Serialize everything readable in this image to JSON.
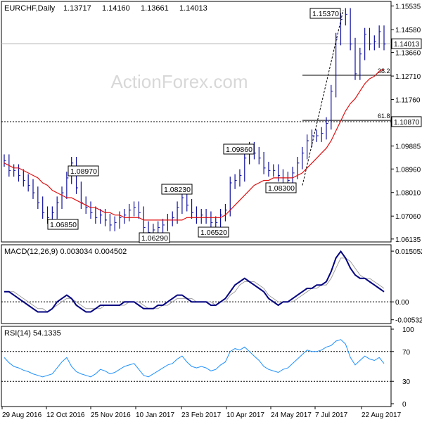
{
  "chart_data": [
    {
      "type": "line",
      "subtype": "ohlc-bars",
      "title": "EURCHF,Daily",
      "ohlc_readout": {
        "open": "1.13717",
        "high": "1.14160",
        "low": "1.13661",
        "close": "1.14013"
      },
      "watermark": "ActionForex.com",
      "ylim": [
        1.0613,
        1.1555
      ],
      "y_ticks": [
        "1.15535",
        "1.14580",
        "1.13660",
        "1.12710",
        "1.11760",
        "1.10870",
        "1.09885",
        "1.08960",
        "1.08010",
        "1.07060",
        "1.06135"
      ],
      "current_price": {
        "value": 1.14013,
        "label": "1.14013"
      },
      "support_line": {
        "value": 1.1087,
        "label": "1.10870"
      },
      "fib_levels": [
        {
          "label": "38.2",
          "value": 1.1274
        },
        {
          "label": "61.8",
          "value": 1.1092
        }
      ],
      "annotations": [
        {
          "label": "1.08970",
          "value": 1.0897
        },
        {
          "label": "1.06850",
          "value": 1.0685
        },
        {
          "label": "1.06290",
          "value": 1.0629
        },
        {
          "label": "1.08230",
          "value": 1.0823
        },
        {
          "label": "1.06520",
          "value": 1.0652
        },
        {
          "label": "1.09860",
          "value": 1.0986
        },
        {
          "label": "1.08300",
          "value": 1.083
        },
        {
          "label": "1.15370",
          "value": 1.1537
        }
      ],
      "x_ticks": [
        "29 Aug 2016",
        "12 Oct 2016",
        "25 Nov 2016",
        "10 Jan 2017",
        "23 Feb 2017",
        "10 Apr 2017",
        "24 May 2017",
        "7 Jul 2017",
        "22 Aug 2017"
      ],
      "series": [
        {
          "role": "price",
          "color": "#1010a0",
          "values": [
            1.093,
            1.089,
            1.089,
            1.087,
            1.085,
            1.083,
            1.08,
            1.076,
            1.072,
            1.07,
            1.072,
            1.076,
            1.08,
            1.086,
            1.092,
            1.082,
            1.076,
            1.074,
            1.072,
            1.07,
            1.071,
            1.069,
            1.067,
            1.068,
            1.07,
            1.071,
            1.073,
            1.074,
            1.072,
            1.066,
            1.064,
            1.065,
            1.066,
            1.067,
            1.069,
            1.07,
            1.074,
            1.078,
            1.075,
            1.072,
            1.07,
            1.071,
            1.07,
            1.068,
            1.068,
            1.071,
            1.073,
            1.084,
            1.085,
            1.087,
            1.094,
            1.098,
            1.096,
            1.094,
            1.09,
            1.089,
            1.089,
            1.087,
            1.086,
            1.085,
            1.088,
            1.092,
            1.096,
            1.101,
            1.103,
            1.103,
            1.104,
            1.108,
            1.121,
            1.142,
            1.15,
            1.152,
            1.14,
            1.128,
            1.136,
            1.144,
            1.14,
            1.141,
            1.145,
            1.14
          ]
        },
        {
          "role": "moving-average",
          "color": "#e01010",
          "values": [
            1.092,
            1.091,
            1.09,
            1.09,
            1.089,
            1.088,
            1.087,
            1.086,
            1.084,
            1.083,
            1.081,
            1.08,
            1.079,
            1.078,
            1.078,
            1.077,
            1.076,
            1.075,
            1.074,
            1.074,
            1.073,
            1.072,
            1.072,
            1.071,
            1.071,
            1.07,
            1.07,
            1.07,
            1.07,
            1.069,
            1.069,
            1.069,
            1.069,
            1.069,
            1.069,
            1.069,
            1.069,
            1.069,
            1.07,
            1.07,
            1.07,
            1.07,
            1.07,
            1.07,
            1.07,
            1.07,
            1.071,
            1.073,
            1.075,
            1.077,
            1.079,
            1.081,
            1.083,
            1.084,
            1.085,
            1.085,
            1.086,
            1.086,
            1.086,
            1.086,
            1.086,
            1.087,
            1.088,
            1.09,
            1.092,
            1.094,
            1.096,
            1.098,
            1.101,
            1.105,
            1.109,
            1.113,
            1.116,
            1.118,
            1.121,
            1.124,
            1.126,
            1.127,
            1.129,
            1.13
          ]
        }
      ]
    },
    {
      "type": "line",
      "title": "MACD(12,26,9) 0.003034 0.004502",
      "ylim": [
        -0.0056,
        0.0157
      ],
      "y_ticks": [
        "0.015052",
        "0.00",
        "-0.005321"
      ],
      "series": [
        {
          "role": "macd",
          "color": "#000080",
          "values": [
            0.003,
            0.003,
            0.002,
            0.001,
            0.0,
            -0.001,
            -0.002,
            -0.003,
            -0.003,
            -0.003,
            -0.002,
            0.0,
            0.001,
            0.002,
            0.001,
            -0.001,
            -0.002,
            -0.003,
            -0.003,
            -0.002,
            -0.001,
            -0.001,
            -0.001,
            -0.001,
            -0.001,
            0.0,
            0.0,
            0.0,
            -0.001,
            -0.002,
            -0.002,
            -0.002,
            -0.001,
            -0.001,
            0.0,
            0.001,
            0.002,
            0.002,
            0.001,
            0.0,
            0.0,
            0.0,
            0.0,
            -0.001,
            -0.001,
            0.0,
            0.001,
            0.003,
            0.005,
            0.006,
            0.007,
            0.006,
            0.005,
            0.004,
            0.003,
            0.001,
            0.0,
            -0.001,
            0.0,
            0.0,
            0.001,
            0.002,
            0.003,
            0.004,
            0.004,
            0.005,
            0.005,
            0.006,
            0.009,
            0.013,
            0.015,
            0.013,
            0.01,
            0.008,
            0.007,
            0.007,
            0.006,
            0.005,
            0.004,
            0.003
          ]
        },
        {
          "role": "signal",
          "color": "#a0a0a0",
          "values": [
            0.003,
            0.003,
            0.003,
            0.002,
            0.001,
            0.0,
            -0.001,
            -0.002,
            -0.002,
            -0.003,
            -0.002,
            -0.001,
            0.0,
            0.001,
            0.001,
            0.0,
            -0.001,
            -0.002,
            -0.002,
            -0.002,
            -0.002,
            -0.001,
            -0.001,
            -0.001,
            -0.001,
            -0.001,
            0.0,
            0.0,
            0.0,
            -0.001,
            -0.002,
            -0.002,
            -0.002,
            -0.001,
            -0.001,
            0.0,
            0.001,
            0.001,
            0.001,
            0.001,
            0.0,
            0.0,
            0.0,
            0.0,
            -0.001,
            0.0,
            0.0,
            0.002,
            0.003,
            0.005,
            0.006,
            0.006,
            0.006,
            0.005,
            0.004,
            0.002,
            0.001,
            0.0,
            0.0,
            0.0,
            0.0,
            0.001,
            0.002,
            0.003,
            0.004,
            0.004,
            0.005,
            0.005,
            0.007,
            0.01,
            0.013,
            0.013,
            0.012,
            0.01,
            0.008,
            0.007,
            0.007,
            0.006,
            0.005,
            0.004
          ]
        }
      ]
    },
    {
      "type": "line",
      "title": "RSI(14) 54.1335",
      "ylim": [
        0,
        100
      ],
      "y_ticks": [
        "100",
        "70",
        "30",
        "0"
      ],
      "levels": [
        70,
        30
      ],
      "series": [
        {
          "role": "rsi",
          "color": "#1e90ff",
          "values": [
            62,
            55,
            50,
            48,
            45,
            43,
            40,
            38,
            36,
            38,
            40,
            48,
            56,
            62,
            50,
            43,
            40,
            38,
            36,
            40,
            46,
            44,
            40,
            42,
            46,
            50,
            52,
            54,
            46,
            38,
            36,
            40,
            44,
            48,
            52,
            54,
            60,
            64,
            56,
            50,
            48,
            50,
            48,
            44,
            46,
            52,
            56,
            70,
            74,
            72,
            76,
            70,
            64,
            58,
            50,
            46,
            44,
            42,
            46,
            48,
            54,
            60,
            66,
            72,
            70,
            70,
            72,
            76,
            78,
            84,
            86,
            80,
            62,
            52,
            58,
            64,
            60,
            58,
            62,
            54
          ]
        }
      ]
    }
  ]
}
